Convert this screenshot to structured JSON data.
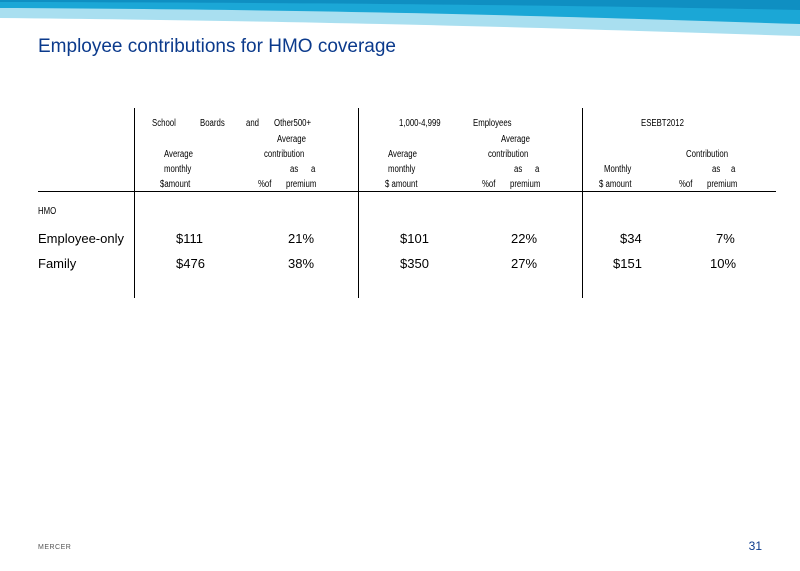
{
  "slide": {
    "title": "Employee contributions for HMO coverage",
    "footer_logo": "MERCER",
    "page_number": "31"
  },
  "table": {
    "group_labels": {
      "g1_w1": "School",
      "g1_w2": "Boards",
      "g1_w3": "and",
      "g1_w4": "Other500+",
      "g2_w1": "1,000-4,999",
      "g2_w2": "Employees",
      "g3_w1": "ESEBT2012"
    },
    "subheaders": {
      "g1_a_l1": "Average",
      "g1_a_l2": "monthly",
      "g1_a_l3": "$amount",
      "g1_b_l1": "Average",
      "g1_b_l2": "contribution",
      "g1_b_as": "as",
      "g1_b_a": "a",
      "g1_b_pct": "%of",
      "g1_b_prem": "premium",
      "g2_a_l1": "Average",
      "g2_a_l2": "monthly",
      "g2_a_l3": "$ amount",
      "g2_b_l1": "Average",
      "g2_b_l2": "contribution",
      "g2_b_as": "as",
      "g2_b_a": "a",
      "g2_b_pct": "%of",
      "g2_b_prem": "premium",
      "g3_a_l1": "Monthly",
      "g3_a_l2": "$ amount",
      "g3_b_l1": "Contribution",
      "g3_b_as": "as",
      "g3_b_a": "a",
      "g3_b_pct": "%of",
      "g3_b_prem": "premium"
    },
    "section_label": "HMO",
    "rows": [
      {
        "label": "Employee-only",
        "v1": "$111",
        "v2": "21%",
        "v3": "$101",
        "v4": "22%",
        "v5": "$34",
        "v6": "7%"
      },
      {
        "label": "Family",
        "v1": "$476",
        "v2": "38%",
        "v3": "$350",
        "v4": "27%",
        "v5": "$151",
        "v6": "10%"
      }
    ]
  }
}
